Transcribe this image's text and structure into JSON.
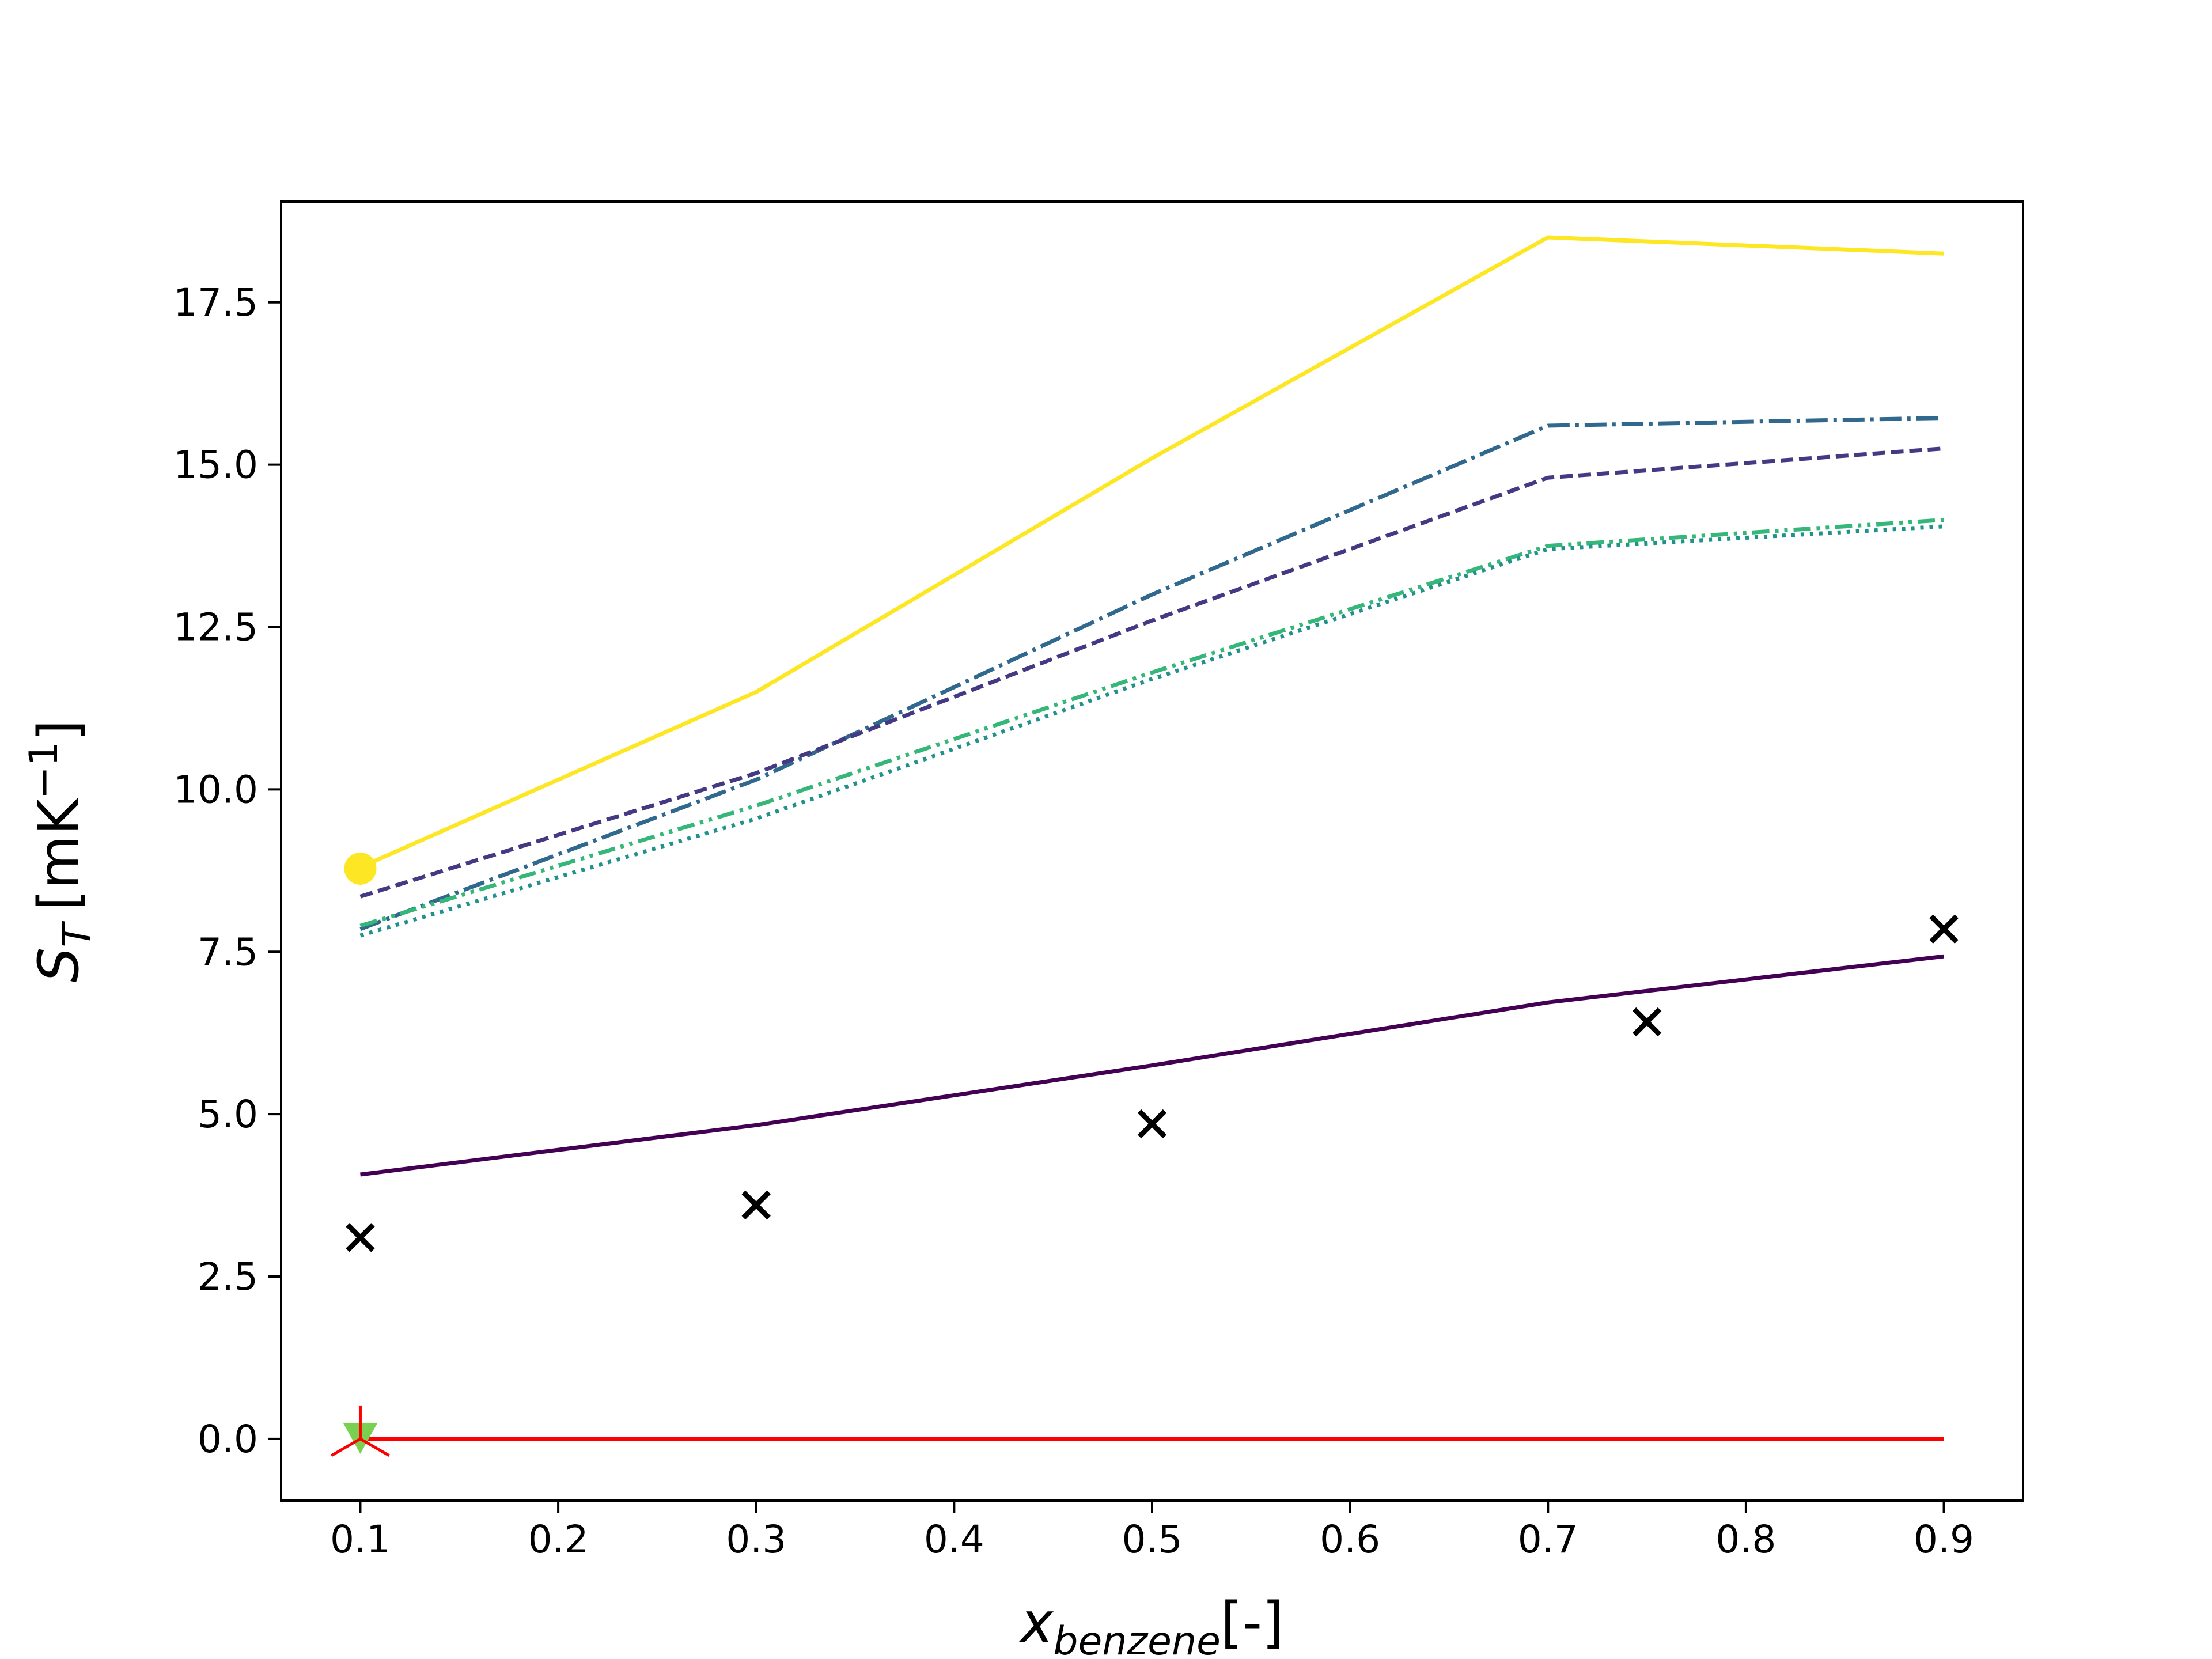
{
  "chart_data": {
    "type": "line",
    "title": "",
    "xlabel": {
      "main": "x",
      "sub": "benzene",
      "unit": "[-]"
    },
    "ylabel": {
      "main": "S",
      "sub": "T",
      "unit": "[mK",
      "sup": "−1",
      "close": "]"
    },
    "xlim": [
      0.06,
      0.94
    ],
    "ylim": [
      -0.95,
      19.05
    ],
    "xticks": [
      0.1,
      0.2,
      0.3,
      0.4,
      0.5,
      0.6,
      0.7,
      0.8,
      0.9
    ],
    "xtick_labels": [
      "0.1",
      "0.2",
      "0.3",
      "0.4",
      "0.5",
      "0.6",
      "0.7",
      "0.8",
      "0.9"
    ],
    "yticks": [
      0.0,
      2.5,
      5.0,
      7.5,
      10.0,
      12.5,
      15.0,
      17.5
    ],
    "ytick_labels": [
      "0.0",
      "2.5",
      "5.0",
      "7.5",
      "10.0",
      "12.5",
      "15.0",
      "17.5"
    ],
    "grid": false,
    "legend": "none",
    "series": [
      {
        "kind": "line",
        "style": "solid",
        "color": "#fde725",
        "x": [
          0.1,
          0.3,
          0.5,
          0.7,
          0.9
        ],
        "y": [
          8.8,
          11.5,
          15.1,
          18.5,
          18.25
        ]
      },
      {
        "kind": "line",
        "style": "dashdot",
        "color": "#31688e",
        "x": [
          0.1,
          0.3,
          0.5,
          0.7,
          0.9
        ],
        "y": [
          7.85,
          10.15,
          13.0,
          15.6,
          15.72
        ]
      },
      {
        "kind": "line",
        "style": "dashed",
        "color": "#443983",
        "x": [
          0.1,
          0.3,
          0.5,
          0.7,
          0.9
        ],
        "y": [
          8.35,
          10.25,
          12.6,
          14.8,
          15.25
        ]
      },
      {
        "kind": "line",
        "style": "dashdotdot",
        "color": "#35b779",
        "x": [
          0.1,
          0.3,
          0.5,
          0.7,
          0.9
        ],
        "y": [
          7.9,
          9.75,
          11.8,
          13.75,
          14.15
        ]
      },
      {
        "kind": "line",
        "style": "dotted",
        "color": "#21918c",
        "x": [
          0.1,
          0.3,
          0.5,
          0.7,
          0.9
        ],
        "y": [
          7.75,
          9.55,
          11.7,
          13.7,
          14.05
        ]
      },
      {
        "kind": "line",
        "style": "solid",
        "color": "#440154",
        "x": [
          0.1,
          0.3,
          0.5,
          0.7,
          0.9
        ],
        "y": [
          4.07,
          4.83,
          5.75,
          6.72,
          7.43
        ]
      },
      {
        "kind": "line",
        "style": "solid",
        "color": "#ff0000",
        "x": [
          0.1,
          0.3,
          0.5,
          0.7,
          0.9
        ],
        "y": [
          0.0,
          0.0,
          0.0,
          0.0,
          0.0
        ]
      },
      {
        "kind": "scatter",
        "marker": "x",
        "color": "#000000",
        "x": [
          0.1,
          0.3,
          0.5,
          0.75,
          0.9
        ],
        "y": [
          3.1,
          3.6,
          4.85,
          6.42,
          7.85
        ]
      },
      {
        "kind": "scatter",
        "marker": "circle",
        "color": "#fde725",
        "x": [
          0.1
        ],
        "y": [
          8.78
        ]
      },
      {
        "kind": "scatter",
        "marker": "triangle-down",
        "color": "#7ad151",
        "x": [
          0.1
        ],
        "y": [
          0.0
        ]
      },
      {
        "kind": "scatter",
        "marker": "tri-up",
        "color": "#ff0000",
        "x": [
          0.1
        ],
        "y": [
          0.0
        ]
      }
    ]
  }
}
